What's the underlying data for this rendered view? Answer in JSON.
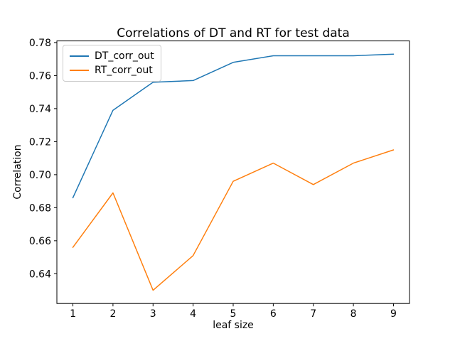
{
  "figure": {
    "background": "#ffffff"
  },
  "chart_data": {
    "type": "line",
    "title": "Correlations of DT and RT for test data",
    "xlabel": "leaf size",
    "ylabel": "Correlation",
    "x": [
      1,
      2,
      3,
      4,
      5,
      6,
      7,
      8,
      9
    ],
    "series": [
      {
        "name": "DT_corr_out",
        "color": "#1f77b4",
        "values": [
          0.686,
          0.739,
          0.756,
          0.757,
          0.768,
          0.772,
          0.772,
          0.772,
          0.773
        ]
      },
      {
        "name": "RT_corr_out",
        "color": "#ff7f0e",
        "values": [
          0.656,
          0.689,
          0.63,
          0.651,
          0.696,
          0.707,
          0.694,
          0.707,
          0.715
        ]
      }
    ],
    "xlim": [
      0.6,
      9.4
    ],
    "ylim": [
      0.622,
      0.781
    ],
    "xticks": {
      "values": [
        1,
        2,
        3,
        4,
        5,
        6,
        7,
        8,
        9
      ],
      "labels": [
        "1",
        "2",
        "3",
        "4",
        "5",
        "6",
        "7",
        "8",
        "9"
      ]
    },
    "yticks": {
      "values": [
        0.64,
        0.66,
        0.68,
        0.7,
        0.72,
        0.74,
        0.76,
        0.78
      ],
      "labels": [
        "0.64",
        "0.66",
        "0.68",
        "0.70",
        "0.72",
        "0.74",
        "0.76",
        "0.78"
      ]
    },
    "grid": false,
    "legend_position": "upper-left",
    "line_width": 1.5,
    "axis_color": "#000000",
    "tick_label_color": "#000000"
  }
}
